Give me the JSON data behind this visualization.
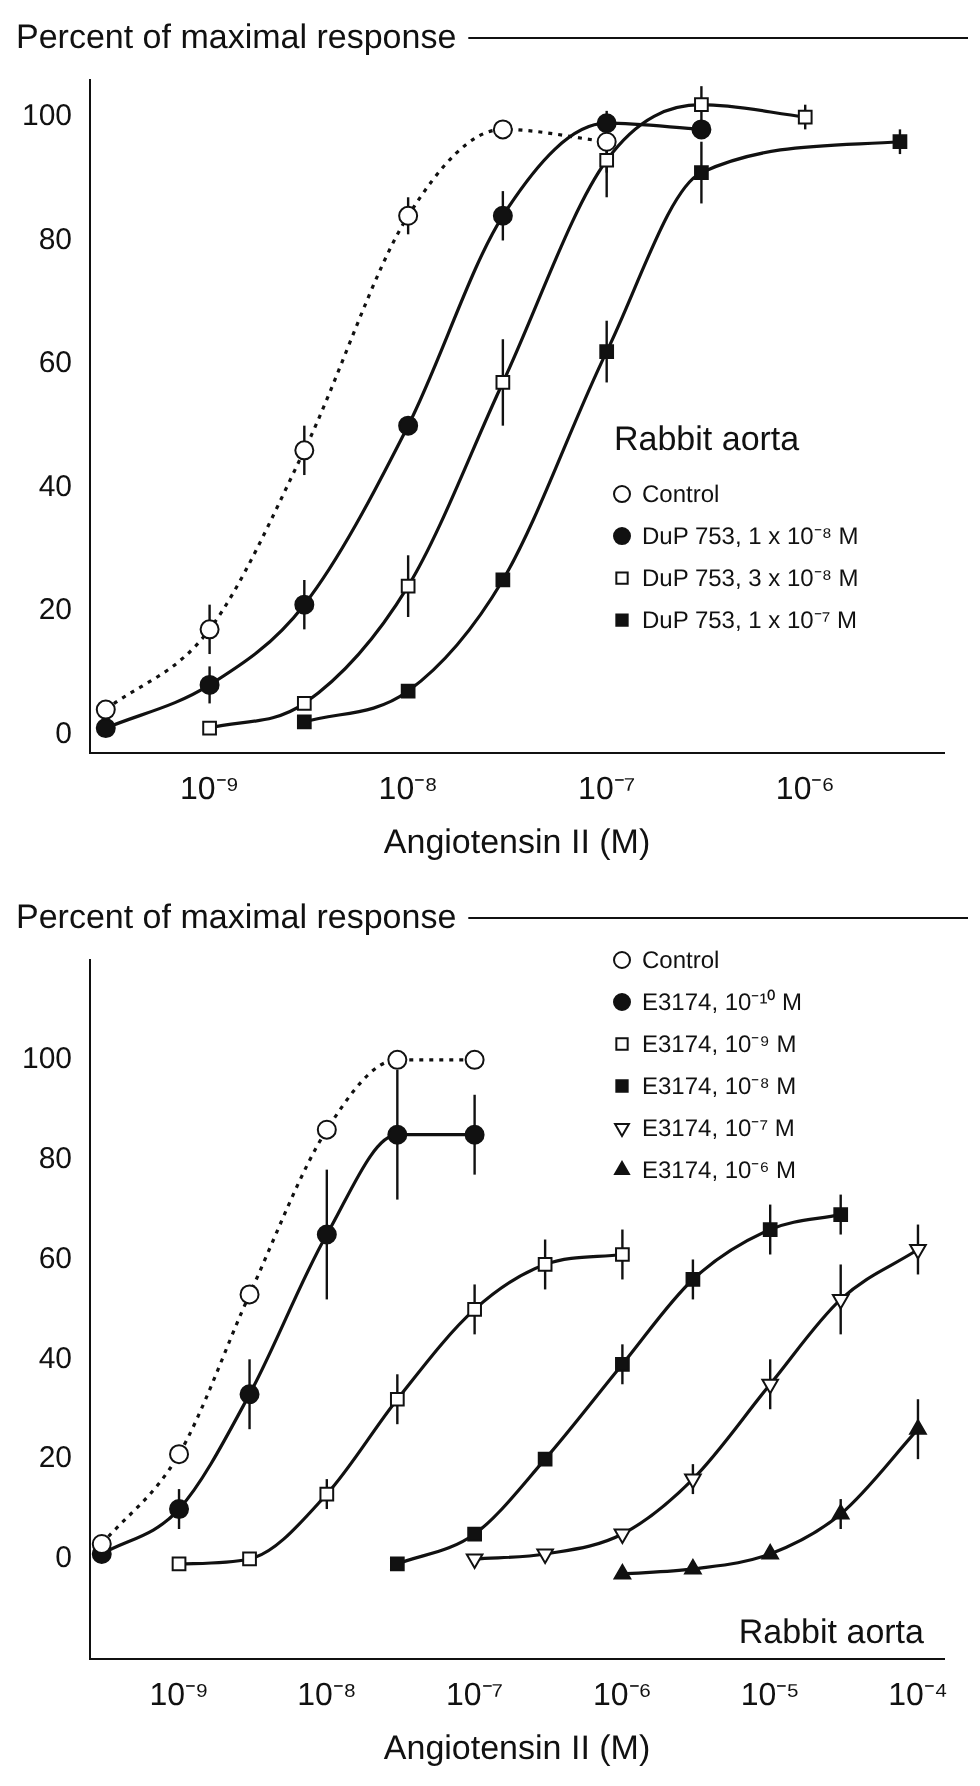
{
  "chart_data": [
    {
      "type": "line",
      "ylabel": "Percent of maximal response",
      "xlabel": "Angiotensin II (M)",
      "legend_title": "Rabbit aorta",
      "legend": "right",
      "log": "x",
      "grid": false,
      "xlim": [
        2.5e-10,
        5e-06
      ],
      "xticks": [
        {
          "value": 1e-09,
          "label": "10⁻⁹"
        },
        {
          "value": 1e-08,
          "label": "10⁻⁸"
        },
        {
          "value": 1e-07,
          "label": "10⁻⁷"
        },
        {
          "value": 1e-06,
          "label": "10⁻⁶"
        }
      ],
      "ylim": [
        -3,
        106
      ],
      "yticks": [
        0,
        20,
        40,
        60,
        80,
        100
      ],
      "series": [
        {
          "name": "Control",
          "color": "#ffffff",
          "marker": "circle",
          "line_style": "dotted",
          "x": [
            3e-10,
            1e-09,
            3e-09,
            1e-08,
            3e-08,
            1e-07
          ],
          "values": [
            4,
            17,
            46,
            84,
            98,
            96
          ],
          "errors": [
            null,
            4,
            4,
            3,
            null,
            5
          ]
        },
        {
          "name": "DuP 753, 1 x 10⁻⁸ M",
          "color": "#111111",
          "marker": "circle",
          "line_style": "solid",
          "x": [
            3e-10,
            1e-09,
            3e-09,
            1e-08,
            3e-08,
            1e-07,
            3e-07
          ],
          "values": [
            1,
            8,
            21,
            50,
            84,
            99,
            98
          ],
          "errors": [
            null,
            3,
            4,
            null,
            4,
            null,
            null
          ]
        },
        {
          "name": "DuP 753, 3 x 10⁻⁸ M",
          "color": "#ffffff",
          "marker": "square",
          "line_style": "solid",
          "x": [
            1e-09,
            3e-09,
            1e-08,
            3e-08,
            1e-07,
            3e-07,
            1e-06
          ],
          "values": [
            1,
            5,
            24,
            57,
            93,
            102,
            100
          ],
          "errors": [
            null,
            null,
            5,
            7,
            6,
            3,
            2
          ]
        },
        {
          "name": "DuP 753, 1 x 10⁻⁷ M",
          "color": "#111111",
          "marker": "square",
          "line_style": "solid",
          "x": [
            3e-09,
            1e-08,
            3e-08,
            1e-07,
            3e-07,
            3e-06
          ],
          "values": [
            2,
            7,
            25,
            62,
            91,
            96
          ],
          "errors": [
            null,
            null,
            null,
            5,
            5,
            2
          ]
        }
      ]
    },
    {
      "type": "line",
      "ylabel": "Percent of maximal response",
      "xlabel": "Angiotensin II (M)",
      "legend": "top right",
      "log": "x",
      "grid": false,
      "annotations": [
        "Rabbit aorta"
      ],
      "xlim": [
        2.5e-10,
        0.00015
      ],
      "xticks": [
        {
          "value": 1e-09,
          "label": "10⁻⁹"
        },
        {
          "value": 1e-08,
          "label": "10⁻⁸"
        },
        {
          "value": 1e-07,
          "label": "10⁻⁷"
        },
        {
          "value": 1e-06,
          "label": "10⁻⁶"
        },
        {
          "value": 1e-05,
          "label": "10⁻⁵"
        },
        {
          "value": 0.0001,
          "label": "10⁻⁴"
        }
      ],
      "ylim": [
        -20,
        120
      ],
      "yticks": [
        0,
        20,
        40,
        60,
        80,
        100
      ],
      "series": [
        {
          "name": "Control",
          "color": "#ffffff",
          "marker": "circle",
          "line_style": "dotted",
          "x": [
            3e-10,
            1e-09,
            3e-09,
            1e-08,
            3e-08,
            1e-07
          ],
          "values": [
            3,
            21,
            53,
            86,
            100,
            100
          ],
          "errors": [
            null,
            null,
            null,
            null,
            null,
            null
          ]
        },
        {
          "name": "E3174, 10⁻¹⁰ M",
          "color": "#111111",
          "marker": "circle",
          "line_style": "solid",
          "x": [
            3e-10,
            1e-09,
            3e-09,
            1e-08,
            3e-08,
            1e-07
          ],
          "values": [
            1,
            10,
            33,
            65,
            85,
            85
          ],
          "errors": [
            null,
            4,
            7,
            13,
            13,
            8
          ]
        },
        {
          "name": "E3174, 10⁻⁹ M",
          "color": "#ffffff",
          "marker": "square",
          "line_style": "solid",
          "x": [
            1e-09,
            3e-09,
            1e-08,
            3e-08,
            1e-07,
            3e-07,
            1e-06
          ],
          "values": [
            -1,
            0,
            13,
            32,
            50,
            59,
            61
          ],
          "errors": [
            null,
            null,
            3,
            5,
            5,
            5,
            5
          ]
        },
        {
          "name": "E3174, 10⁻⁸ M",
          "color": "#111111",
          "marker": "square",
          "line_style": "solid",
          "x": [
            3e-08,
            1e-07,
            3e-07,
            1e-06,
            3e-06,
            1e-05,
            3e-05
          ],
          "values": [
            -1,
            5,
            20,
            39,
            56,
            66,
            69
          ],
          "errors": [
            null,
            null,
            null,
            4,
            4,
            5,
            4
          ]
        },
        {
          "name": "E3174, 10⁻⁷ M",
          "color": "#ffffff",
          "marker": "triangle-down",
          "line_style": "solid",
          "x": [
            1e-07,
            3e-07,
            1e-06,
            3e-06,
            1e-05,
            3e-05,
            0.0001
          ],
          "values": [
            0,
            1,
            5,
            16,
            35,
            52,
            62
          ],
          "errors": [
            null,
            null,
            null,
            3,
            5,
            7,
            5
          ]
        },
        {
          "name": "E3174, 10⁻⁶ M",
          "color": "#111111",
          "marker": "triangle",
          "line_style": "solid",
          "x": [
            1e-06,
            3e-06,
            1e-05,
            3e-05,
            0.0001
          ],
          "values": [
            -3,
            -2,
            1,
            9,
            26
          ],
          "errors": [
            null,
            null,
            null,
            3,
            6
          ]
        }
      ]
    }
  ]
}
